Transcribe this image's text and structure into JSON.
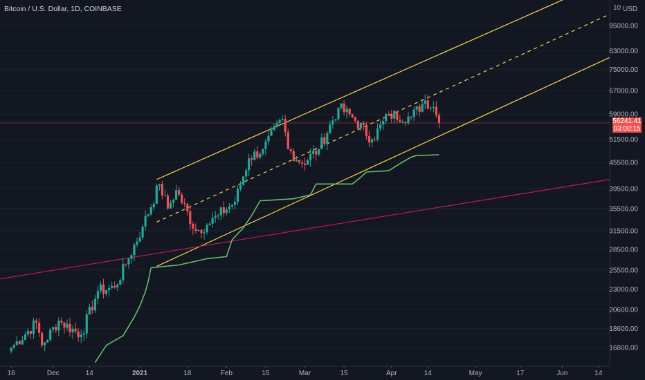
{
  "legend": {
    "symbol": "Bitcoin / U.S. Dollar, 1D, COINBASE"
  },
  "price_axis": {
    "currency": "USD",
    "top_label": "10",
    "ticks": [
      "95000.00",
      "83000.00",
      "75000.00",
      "67000.00",
      "59000.00",
      "51500.00",
      "45500.00",
      "39500.00",
      "35500.00",
      "31500.00",
      "28500.00",
      "25500.00",
      "23000.00",
      "20600.00",
      "18600.00",
      "16800.00"
    ]
  },
  "last_price": {
    "value": "56241.41",
    "countdown": "03:00:15"
  },
  "time_axis": {
    "labels": [
      "16",
      "Dec",
      "14",
      "2021",
      "18",
      "Feb",
      "15",
      "Mar",
      "15",
      "Apr",
      "14",
      "May",
      "17",
      "Jun",
      "14"
    ]
  },
  "colors": {
    "background": "#131722",
    "up": "#26a69a",
    "down": "#ef5350",
    "channel": "#ffd54f",
    "support_line": "#c2185b",
    "indicator": "#66bb6a",
    "last_price_line": "#ef5350"
  },
  "chart_data": {
    "type": "candlestick",
    "symbol": "BTCUSD",
    "timeframe": "1D",
    "exchange": "COINBASE",
    "y_scale": "log",
    "ylim": [
      15500,
      120000
    ],
    "x_range": [
      "2020-11-12",
      "2021-06-18"
    ],
    "anchors": [
      {
        "date": "2020-11-16",
        "close": 16800
      },
      {
        "date": "2020-11-25",
        "close": 19200
      },
      {
        "date": "2020-11-27",
        "close": 17000
      },
      {
        "date": "2020-12-03",
        "close": 19400
      },
      {
        "date": "2020-12-11",
        "close": 18000
      },
      {
        "date": "2020-12-17",
        "close": 22800
      },
      {
        "date": "2020-12-23",
        "close": 23200
      },
      {
        "date": "2020-12-27",
        "close": 26300
      },
      {
        "date": "2021-01-02",
        "close": 32200
      },
      {
        "date": "2021-01-08",
        "close": 40500
      },
      {
        "date": "2021-01-11",
        "close": 35500
      },
      {
        "date": "2021-01-14",
        "close": 39200
      },
      {
        "date": "2021-01-21",
        "close": 31500
      },
      {
        "date": "2021-01-25",
        "close": 32500
      },
      {
        "date": "2021-01-29",
        "close": 34200
      },
      {
        "date": "2021-02-04",
        "close": 36800
      },
      {
        "date": "2021-02-09",
        "close": 46500
      },
      {
        "date": "2021-02-14",
        "close": 48900
      },
      {
        "date": "2021-02-21",
        "close": 57500
      },
      {
        "date": "2021-02-23",
        "close": 48900
      },
      {
        "date": "2021-02-28",
        "close": 45200
      },
      {
        "date": "2021-03-06",
        "close": 48900
      },
      {
        "date": "2021-03-13",
        "close": 61000
      },
      {
        "date": "2021-03-18",
        "close": 58000
      },
      {
        "date": "2021-03-25",
        "close": 51500
      },
      {
        "date": "2021-03-31",
        "close": 58800
      },
      {
        "date": "2021-04-08",
        "close": 58000
      },
      {
        "date": "2021-04-13",
        "close": 63500
      },
      {
        "date": "2021-04-16",
        "close": 61300
      },
      {
        "date": "2021-04-18",
        "close": 56241.41
      }
    ],
    "indicator": {
      "name": "",
      "points": [
        {
          "date": "2020-12-16",
          "value": 15500
        },
        {
          "date": "2020-12-20",
          "value": 17000
        },
        {
          "date": "2020-12-26",
          "value": 17900
        },
        {
          "date": "2020-12-30",
          "value": 19800
        },
        {
          "date": "2021-01-01",
          "value": 21000
        },
        {
          "date": "2021-01-03",
          "value": 22700
        },
        {
          "date": "2021-01-04",
          "value": 24000
        },
        {
          "date": "2021-01-05",
          "value": 25800
        },
        {
          "date": "2021-01-15",
          "value": 26200
        },
        {
          "date": "2021-01-25",
          "value": 27100
        },
        {
          "date": "2021-02-01",
          "value": 27400
        },
        {
          "date": "2021-02-03",
          "value": 30000
        },
        {
          "date": "2021-02-07",
          "value": 32000
        },
        {
          "date": "2021-02-10",
          "value": 34200
        },
        {
          "date": "2021-02-13",
          "value": 37000
        },
        {
          "date": "2021-02-25",
          "value": 37400
        },
        {
          "date": "2021-03-03",
          "value": 38200
        },
        {
          "date": "2021-03-05",
          "value": 40500
        },
        {
          "date": "2021-03-18",
          "value": 40500
        },
        {
          "date": "2021-03-21",
          "value": 42000
        },
        {
          "date": "2021-03-23",
          "value": 43200
        },
        {
          "date": "2021-03-31",
          "value": 43500
        },
        {
          "date": "2021-04-04",
          "value": 45200
        },
        {
          "date": "2021-04-08",
          "value": 46800
        },
        {
          "date": "2021-04-10",
          "value": 47200
        },
        {
          "date": "2021-04-18",
          "value": 47400
        }
      ]
    },
    "drawings": [
      {
        "kind": "trendline",
        "name": "channel-upper",
        "style": "solid",
        "from": {
          "date": "2021-01-07",
          "value": 41500
        },
        "to": {
          "date": "2021-06-18",
          "value": 122000
        }
      },
      {
        "kind": "trendline",
        "name": "channel-middle",
        "style": "dashed",
        "from": {
          "date": "2021-01-07",
          "value": 33000
        },
        "to": {
          "date": "2021-06-18",
          "value": 101000
        }
      },
      {
        "kind": "trendline",
        "name": "channel-lower",
        "style": "solid",
        "from": {
          "date": "2021-01-07",
          "value": 26000
        },
        "to": {
          "date": "2021-06-18",
          "value": 80000
        }
      },
      {
        "kind": "trendline",
        "name": "long-term-support",
        "style": "solid",
        "from": {
          "date": "2020-11-12",
          "value": 24300
        },
        "to": {
          "date": "2021-06-18",
          "value": 41500
        }
      }
    ]
  }
}
